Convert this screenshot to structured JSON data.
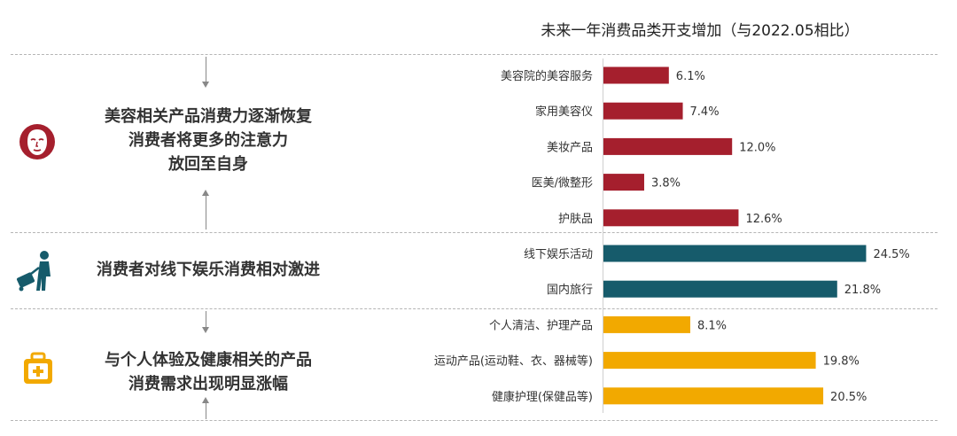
{
  "chart_data": {
    "type": "bar",
    "orientation": "horizontal",
    "title": "未来一年消费品类开支增加（与2022.05相比）",
    "categories": [
      "美容院的美容服务",
      "家用美容仪",
      "美妆产品",
      "医美/微整形",
      "护肤品",
      "线下娱乐活动",
      "国内旅行",
      "个人清洁、护理产品",
      "运动产品(运动鞋、衣、器械等)",
      "健康护理(保健品等)"
    ],
    "values": [
      6.1,
      7.4,
      12.0,
      3.8,
      12.6,
      24.5,
      21.8,
      8.1,
      19.8,
      20.5
    ],
    "value_labels": [
      "6.1%",
      "7.4%",
      "12.0%",
      "3.8%",
      "12.6%",
      "24.5%",
      "21.8%",
      "8.1%",
      "19.8%",
      "20.5%"
    ],
    "group_index": [
      0,
      0,
      0,
      0,
      0,
      1,
      1,
      2,
      2,
      2
    ],
    "colors": [
      "#a51f2d",
      "#165b6b",
      "#f2a900"
    ],
    "xlim": [
      0,
      26
    ],
    "grid": false,
    "legend": "none"
  },
  "groups": [
    {
      "icon": "face-mask-icon",
      "lines": [
        "美容相关产品消费力逐渐恢复",
        "消费者将更多的注意力",
        "放回至自身"
      ]
    },
    {
      "icon": "traveler-luggage-icon",
      "lines": [
        "消费者对线下娱乐消费相对激进"
      ]
    },
    {
      "icon": "health-kit-icon",
      "lines": [
        "与个人体验及健康相关的产品",
        "消费需求出现明显涨幅"
      ]
    }
  ]
}
